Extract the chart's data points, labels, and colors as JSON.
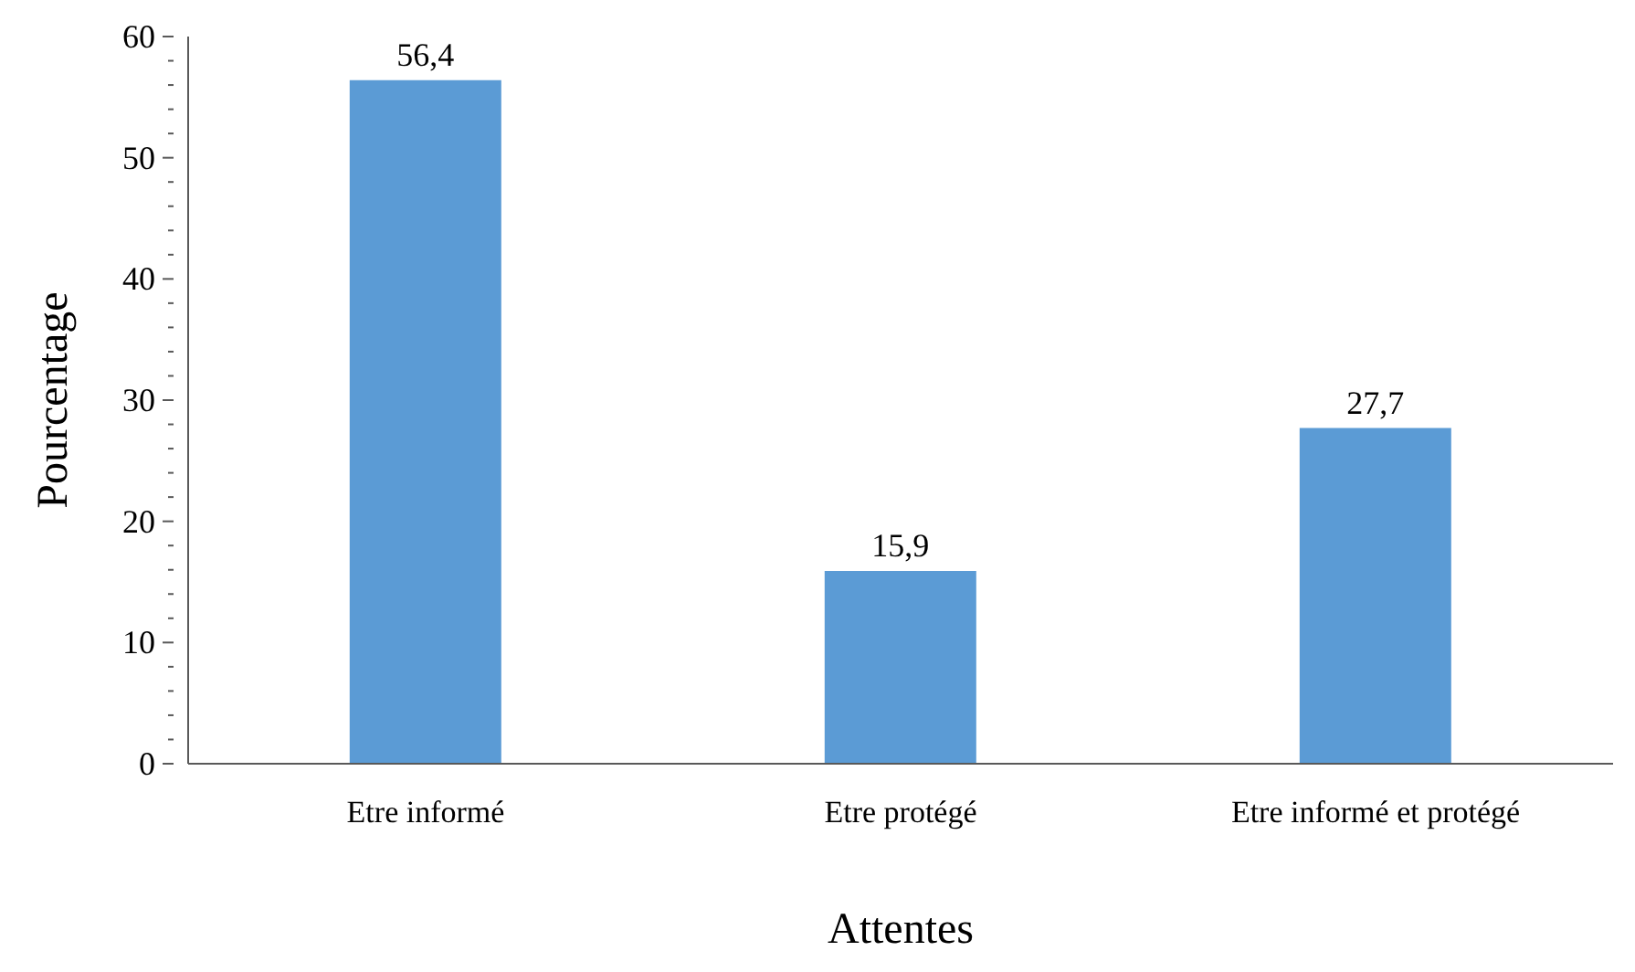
{
  "chart_data": {
    "type": "bar",
    "xlabel": "Attentes",
    "ylabel": "Pourcentage",
    "categories": [
      "Etre informé",
      "Etre protégé",
      "Etre informé et protégé"
    ],
    "values": [
      56.4,
      15.9,
      27.7
    ],
    "value_labels": [
      "56,4",
      "15,9",
      "27,7"
    ],
    "color": "#5b9bd5",
    "ylim": [
      0,
      60
    ],
    "yticks": [
      0,
      {
        "value": 2,
        "label": null
      },
      {
        "value": 4,
        "label": null
      },
      {
        "value": 6,
        "label": null
      },
      {
        "value": 8,
        "label": null
      },
      10,
      {
        "value": 12,
        "label": null
      },
      {
        "value": 14,
        "label": null
      },
      {
        "value": 16,
        "label": null
      },
      {
        "value": 18,
        "label": null
      },
      20,
      {
        "value": 22,
        "label": null
      },
      {
        "value": 24,
        "label": null
      },
      {
        "value": 26,
        "label": null
      },
      {
        "value": 28,
        "label": null
      },
      30,
      {
        "value": 32,
        "label": null
      },
      {
        "value": 34,
        "label": null
      },
      {
        "value": 36,
        "label": null
      },
      {
        "value": 38,
        "label": null
      },
      40,
      {
        "value": 42,
        "label": null
      },
      {
        "value": 44,
        "label": null
      },
      {
        "value": 46,
        "label": null
      },
      {
        "value": 48,
        "label": null
      },
      50,
      {
        "value": 52,
        "label": null
      },
      {
        "value": 54,
        "label": null
      },
      {
        "value": 56,
        "label": null
      },
      {
        "value": 58,
        "label": null
      },
      60
    ],
    "grid": false
  }
}
